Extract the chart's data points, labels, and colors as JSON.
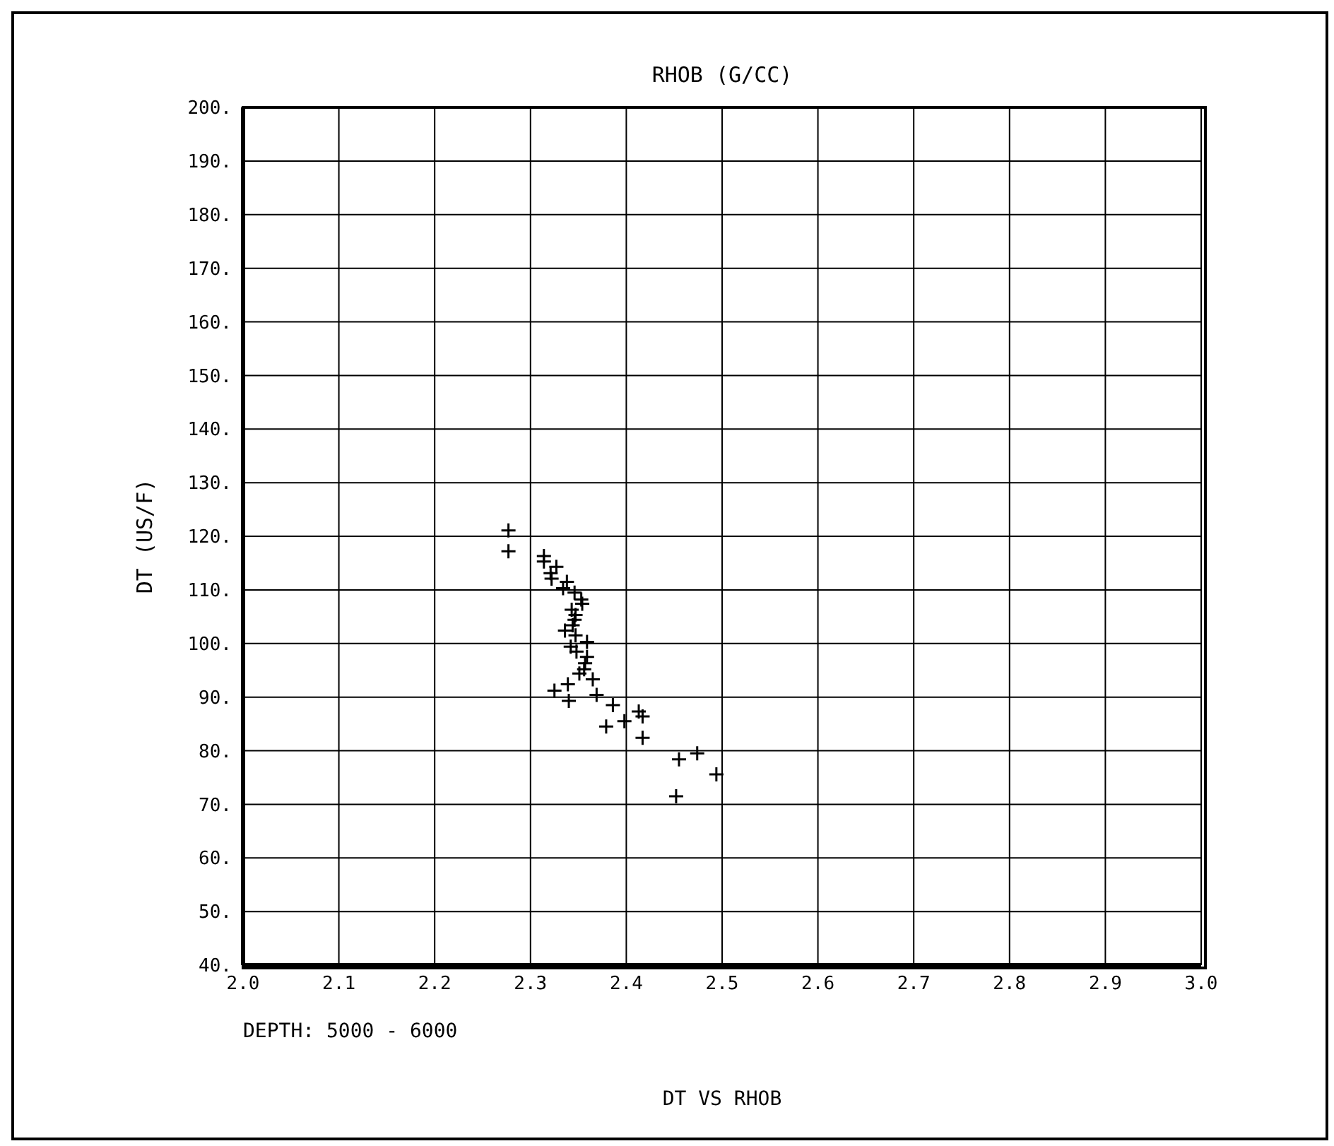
{
  "chart_data": {
    "type": "scatter",
    "title": "DT VS RHOB",
    "xlabel": "RHOB (G/CC)",
    "ylabel": "DT (US/F)",
    "annotations": [
      "DEPTH: 5000 - 6000"
    ],
    "x": [
      2.277,
      2.277,
      2.314,
      2.314,
      2.327,
      2.321,
      2.322,
      2.338,
      2.334,
      2.346,
      2.353,
      2.354,
      2.343,
      2.347,
      2.346,
      2.344,
      2.336,
      2.347,
      2.359,
      2.342,
      2.348,
      2.359,
      2.357,
      2.356,
      2.351,
      2.365,
      2.339,
      2.325,
      2.369,
      2.34,
      2.386,
      2.413,
      2.417,
      2.398,
      2.379,
      2.417,
      2.474,
      2.455,
      2.494,
      2.452
    ],
    "values": [
      121.1,
      117.2,
      116.3,
      115.3,
      114.3,
      113.1,
      112.1,
      111.5,
      110.3,
      109.5,
      108.2,
      107.4,
      106.3,
      105.3,
      104.4,
      103.4,
      102.4,
      101.5,
      100.3,
      99.4,
      98.5,
      97.5,
      96.3,
      95.2,
      94.4,
      93.3,
      92.4,
      91.2,
      90.4,
      89.3,
      88.5,
      87.3,
      86.4,
      85.5,
      84.5,
      82.4,
      79.5,
      78.4,
      75.6,
      71.5
    ],
    "color": "#000000",
    "marker": "cross",
    "grid": true,
    "xlim": [
      2,
      3
    ],
    "xticks": [
      {
        "value": 2,
        "label": "2.0"
      },
      {
        "value": 2.1,
        "label": "2.1"
      },
      {
        "value": 2.2,
        "label": "2.2"
      },
      {
        "value": 2.3,
        "label": "2.3"
      },
      {
        "value": 2.4,
        "label": "2.4"
      },
      {
        "value": 2.5,
        "label": "2.5"
      },
      {
        "value": 2.6,
        "label": "2.6"
      },
      {
        "value": 2.7,
        "label": "2.7"
      },
      {
        "value": 2.8,
        "label": "2.8"
      },
      {
        "value": 2.9,
        "label": "2.9"
      },
      {
        "value": 3,
        "label": "3.0"
      }
    ],
    "ylim": [
      40,
      200
    ],
    "yticks": [
      {
        "value": 40,
        "label": "40."
      },
      {
        "value": 50,
        "label": "50."
      },
      {
        "value": 60,
        "label": "60."
      },
      {
        "value": 70,
        "label": "70."
      },
      {
        "value": 80,
        "label": "80."
      },
      {
        "value": 90,
        "label": "90."
      },
      {
        "value": 100,
        "label": "100."
      },
      {
        "value": 110,
        "label": "110."
      },
      {
        "value": 120,
        "label": "120."
      },
      {
        "value": 130,
        "label": "130."
      },
      {
        "value": 140,
        "label": "140."
      },
      {
        "value": 150,
        "label": "150."
      },
      {
        "value": 160,
        "label": "160."
      },
      {
        "value": 170,
        "label": "170."
      },
      {
        "value": 180,
        "label": "180."
      },
      {
        "value": 190,
        "label": "190."
      },
      {
        "value": 200,
        "label": "200."
      }
    ]
  }
}
